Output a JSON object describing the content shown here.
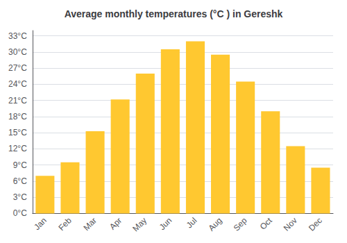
{
  "chart_data": {
    "type": "bar",
    "title": "Average monthly temperatures (°C ) in Gereshk",
    "categories": [
      "Jan",
      "Feb",
      "Mar",
      "Apr",
      "May",
      "Jun",
      "Jul",
      "Aug",
      "Sep",
      "Oct",
      "Nov",
      "Dec"
    ],
    "values": [
      7.0,
      9.5,
      15.3,
      21.2,
      26.0,
      30.5,
      32.0,
      29.5,
      24.5,
      19.0,
      12.5,
      8.5
    ],
    "color": "#FFC830",
    "ylim": [
      0,
      34
    ],
    "yticks": [
      {
        "value": 0,
        "label": "0°C"
      },
      {
        "value": 3,
        "label": "3°C"
      },
      {
        "value": 6,
        "label": "6°C"
      },
      {
        "value": 9,
        "label": "9°C"
      },
      {
        "value": 12,
        "label": "12°C"
      },
      {
        "value": 15,
        "label": "15°C"
      },
      {
        "value": 18,
        "label": "18°C"
      },
      {
        "value": 21,
        "label": "21°C"
      },
      {
        "value": 24,
        "label": "24°C"
      },
      {
        "value": 27,
        "label": "27°C"
      },
      {
        "value": 30,
        "label": "30°C"
      },
      {
        "value": 33,
        "label": "33°C"
      }
    ],
    "grid": true
  }
}
